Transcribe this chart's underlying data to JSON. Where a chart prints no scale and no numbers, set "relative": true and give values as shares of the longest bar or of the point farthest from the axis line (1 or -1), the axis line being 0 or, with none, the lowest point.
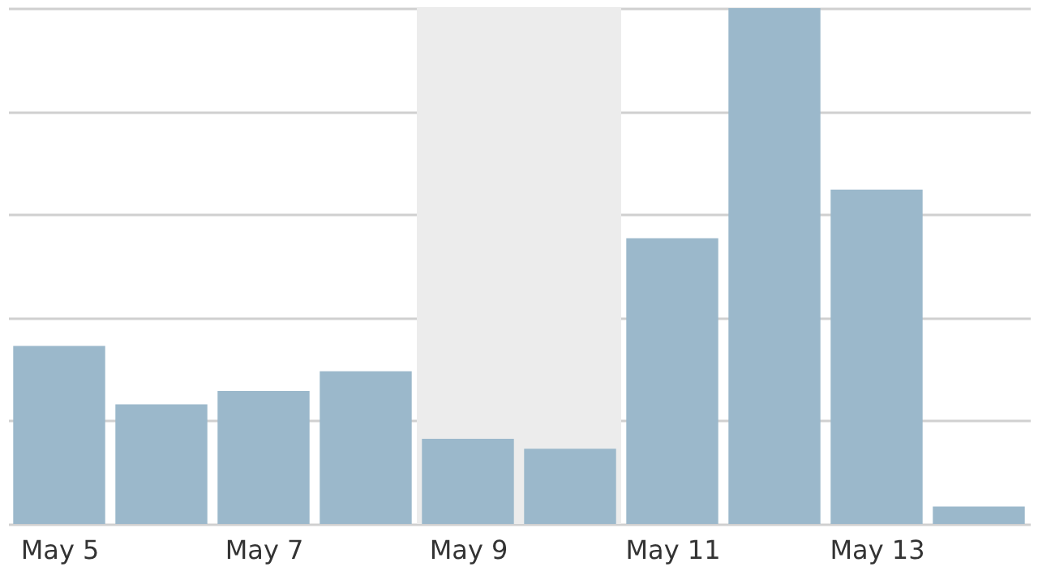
{
  "chart_data": {
    "type": "bar",
    "relative": true,
    "categories": [
      "May 5",
      null,
      "May 7",
      null,
      "May 9",
      null,
      "May 11",
      null,
      "May 13",
      null
    ],
    "values": [
      0.345,
      0.232,
      0.258,
      0.296,
      0.165,
      0.146,
      0.554,
      1,
      0.648,
      0.034
    ],
    "color": "#9bb8cb",
    "bands": [
      {
        "axis": "x",
        "from": "May 9",
        "to": "May 11",
        "color": "#ececec"
      }
    ],
    "grid": "y"
  }
}
